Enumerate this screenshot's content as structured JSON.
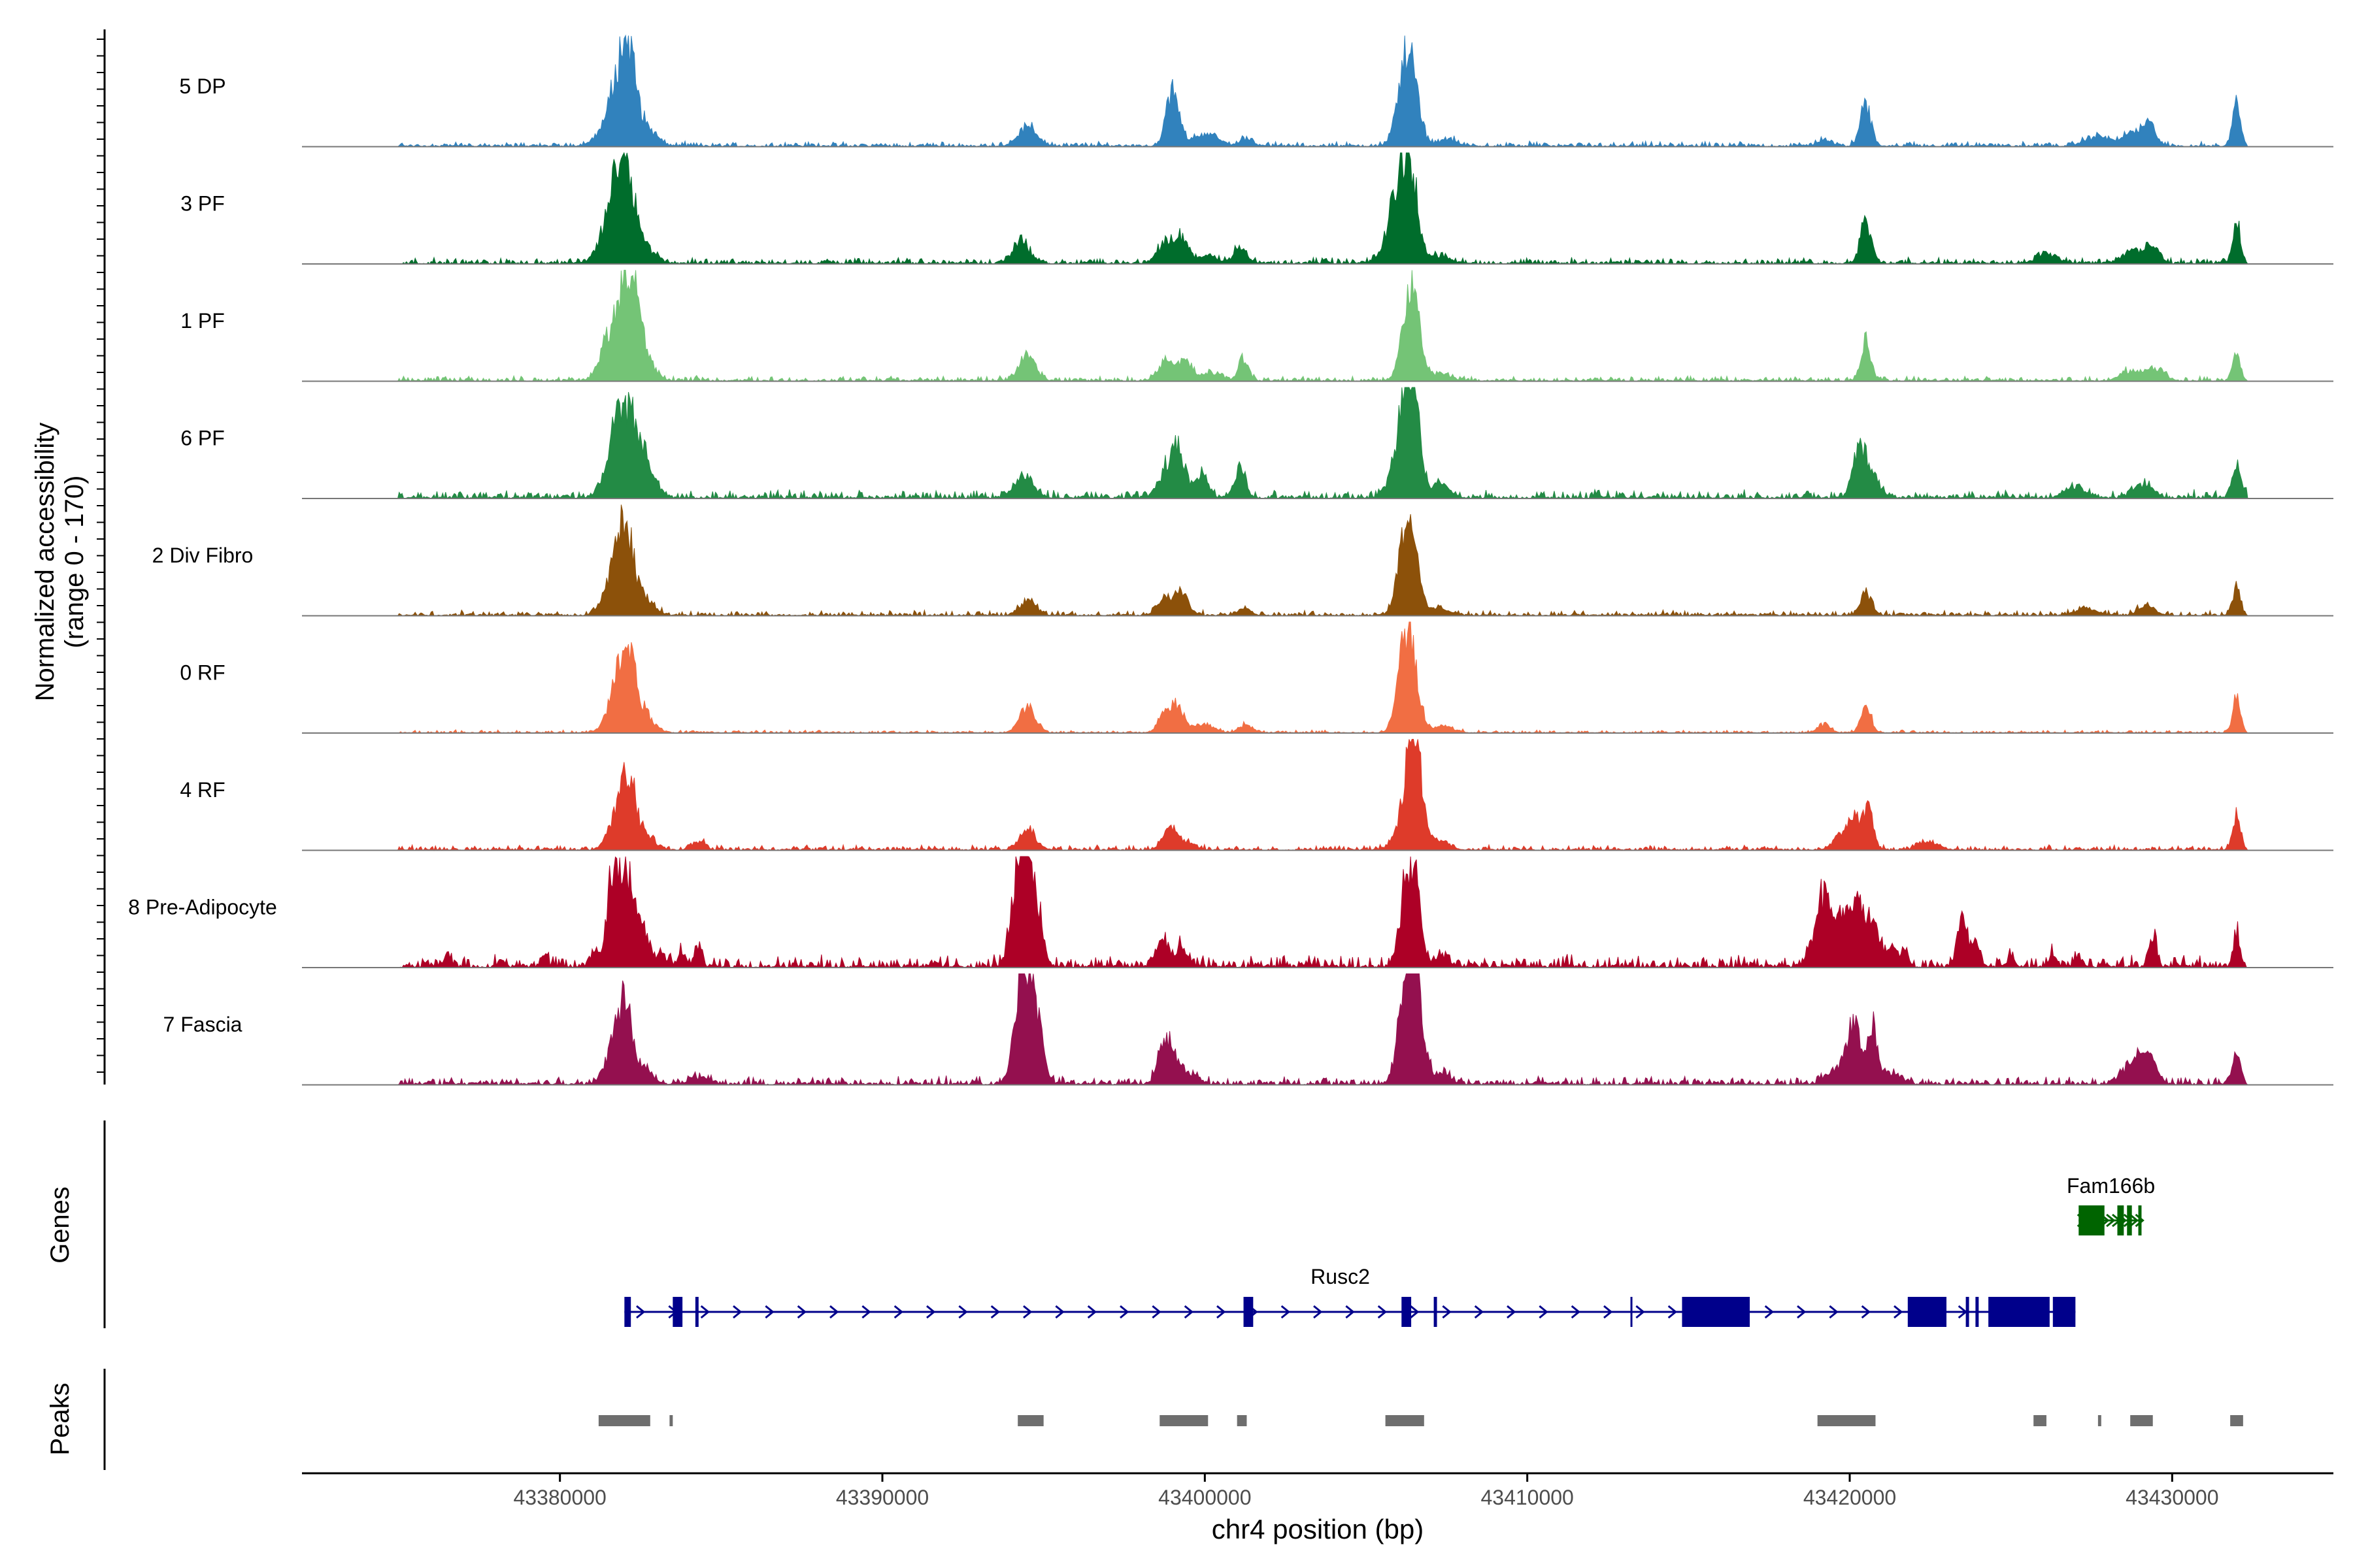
{
  "chart_data": {
    "type": "area",
    "chromosome": "chr4",
    "xlabel": "chr4 position (bp)",
    "ylabel_line1": "Normalized accessibility",
    "ylabel_line2": "(range 0 - 170)",
    "y_range": [
      0,
      170
    ],
    "xlim": [
      43372000,
      43435000
    ],
    "x_ticks": [
      43380000,
      43390000,
      43400000,
      43410000,
      43420000,
      43430000
    ],
    "x_tick_labels": [
      "43380000",
      "43390000",
      "43400000",
      "43410000",
      "43420000",
      "43430000"
    ],
    "grid": false,
    "tracks": [
      {
        "name": "5 DP",
        "color": "#3182bd",
        "peaks": [
          [
            43381400,
            18,
            350
          ],
          [
            43381700,
            50,
            250
          ],
          [
            43382100,
            145,
            250
          ],
          [
            43382700,
            25,
            300
          ],
          [
            43394500,
            28,
            300
          ],
          [
            43399000,
            80,
            200
          ],
          [
            43400000,
            18,
            400
          ],
          [
            43401300,
            12,
            200
          ],
          [
            43406300,
            150,
            270
          ],
          [
            43407500,
            10,
            300
          ],
          [
            43419200,
            10,
            200
          ],
          [
            43420500,
            62,
            170
          ],
          [
            43427700,
            14,
            400
          ],
          [
            43428800,
            20,
            300
          ],
          [
            43429300,
            30,
            200
          ],
          [
            43432000,
            68,
            120
          ]
        ],
        "noise": 0.05
      },
      {
        "name": "3 PF",
        "color": "#006d2c",
        "peaks": [
          [
            43381500,
            55,
            300
          ],
          [
            43381800,
            70,
            200
          ],
          [
            43382100,
            125,
            260
          ],
          [
            43382700,
            20,
            300
          ],
          [
            43394300,
            35,
            250
          ],
          [
            43398800,
            32,
            250
          ],
          [
            43399300,
            35,
            200
          ],
          [
            43400100,
            12,
            300
          ],
          [
            43401100,
            28,
            180
          ],
          [
            43406000,
            110,
            300
          ],
          [
            43406400,
            115,
            220
          ],
          [
            43407300,
            12,
            300
          ],
          [
            43420500,
            65,
            170
          ],
          [
            43426100,
            15,
            300
          ],
          [
            43428800,
            20,
            300
          ],
          [
            43429400,
            22,
            200
          ],
          [
            43432000,
            60,
            120
          ]
        ],
        "noise": 0.06
      },
      {
        "name": "1 PF",
        "color": "#74c476",
        "peaks": [
          [
            43381500,
            65,
            250
          ],
          [
            43381900,
            55,
            200
          ],
          [
            43382200,
            130,
            250
          ],
          [
            43382600,
            35,
            300
          ],
          [
            43394500,
            38,
            250
          ],
          [
            43398800,
            30,
            250
          ],
          [
            43399400,
            28,
            200
          ],
          [
            43400200,
            12,
            300
          ],
          [
            43401200,
            34,
            150
          ],
          [
            43406400,
            145,
            250
          ],
          [
            43407300,
            10,
            300
          ],
          [
            43420500,
            62,
            150
          ],
          [
            43428700,
            15,
            300
          ],
          [
            43429500,
            20,
            250
          ],
          [
            43432000,
            40,
            120
          ]
        ],
        "noise": 0.05
      },
      {
        "name": "6 PF",
        "color": "#238b45",
        "peaks": [
          [
            43381500,
            40,
            250
          ],
          [
            43381800,
            85,
            200
          ],
          [
            43382200,
            100,
            250
          ],
          [
            43382600,
            50,
            300
          ],
          [
            43394400,
            30,
            300
          ],
          [
            43398800,
            40,
            250
          ],
          [
            43399200,
            65,
            200
          ],
          [
            43399900,
            35,
            200
          ],
          [
            43401100,
            45,
            160
          ],
          [
            43406100,
            75,
            300
          ],
          [
            43406400,
            160,
            230
          ],
          [
            43407300,
            20,
            300
          ],
          [
            43420300,
            70,
            200
          ],
          [
            43420700,
            30,
            250
          ],
          [
            43427000,
            15,
            300
          ],
          [
            43429100,
            20,
            300
          ],
          [
            43432000,
            52,
            130
          ]
        ],
        "noise": 0.08
      },
      {
        "name": "2 Div Fibro",
        "color": "#8c510a",
        "peaks": [
          [
            43381600,
            40,
            300
          ],
          [
            43382000,
            130,
            260
          ],
          [
            43382600,
            25,
            300
          ],
          [
            43394500,
            22,
            250
          ],
          [
            43398800,
            25,
            250
          ],
          [
            43399300,
            30,
            200
          ],
          [
            43401200,
            12,
            200
          ],
          [
            43406300,
            155,
            260
          ],
          [
            43407300,
            10,
            300
          ],
          [
            43420500,
            35,
            180
          ],
          [
            43427300,
            12,
            300
          ],
          [
            43429200,
            15,
            250
          ],
          [
            43432000,
            42,
            120
          ]
        ],
        "noise": 0.05
      },
      {
        "name": "0 RF",
        "color": "#f16e43",
        "peaks": [
          [
            43381700,
            55,
            250
          ],
          [
            43382100,
            115,
            240
          ],
          [
            43382600,
            28,
            300
          ],
          [
            43394500,
            38,
            250
          ],
          [
            43398800,
            32,
            220
          ],
          [
            43399200,
            32,
            200
          ],
          [
            43400000,
            12,
            300
          ],
          [
            43401300,
            12,
            200
          ],
          [
            43406300,
            165,
            260
          ],
          [
            43407400,
            10,
            300
          ],
          [
            43419200,
            12,
            200
          ],
          [
            43420500,
            40,
            160
          ],
          [
            43432000,
            55,
            120
          ]
        ],
        "noise": 0.03
      },
      {
        "name": "4 RF",
        "color": "#de3b2a",
        "peaks": [
          [
            43381700,
            35,
            250
          ],
          [
            43382100,
            110,
            230
          ],
          [
            43382600,
            20,
            300
          ],
          [
            43384300,
            12,
            200
          ],
          [
            43394500,
            32,
            250
          ],
          [
            43398900,
            32,
            200
          ],
          [
            43399400,
            12,
            300
          ],
          [
            43406200,
            40,
            300
          ],
          [
            43406500,
            165,
            230
          ],
          [
            43407300,
            12,
            300
          ],
          [
            43419800,
            25,
            250
          ],
          [
            43420200,
            40,
            200
          ],
          [
            43420600,
            58,
            150
          ],
          [
            43422500,
            12,
            300
          ],
          [
            43432000,
            55,
            120
          ]
        ],
        "noise": 0.05
      },
      {
        "name": "8 Pre-Adipocyte",
        "color": "#ad0026",
        "peaks": [
          [
            43376500,
            18,
            100
          ],
          [
            43378200,
            10,
            100
          ],
          [
            43379500,
            15,
            100
          ],
          [
            43381100,
            25,
            120
          ],
          [
            43381600,
            130,
            150
          ],
          [
            43382000,
            150,
            180
          ],
          [
            43382400,
            70,
            200
          ],
          [
            43382800,
            20,
            200
          ],
          [
            43383200,
            15,
            120
          ],
          [
            43383800,
            20,
            120
          ],
          [
            43384300,
            30,
            100
          ],
          [
            43394300,
            170,
            180
          ],
          [
            43394700,
            130,
            200
          ],
          [
            43394000,
            40,
            150
          ],
          [
            43398700,
            40,
            200
          ],
          [
            43399300,
            25,
            150
          ],
          [
            43406200,
            80,
            200
          ],
          [
            43406500,
            125,
            200
          ],
          [
            43407300,
            15,
            200
          ],
          [
            43418800,
            25,
            150
          ],
          [
            43419200,
            100,
            200
          ],
          [
            43419700,
            75,
            200
          ],
          [
            43420200,
            95,
            200
          ],
          [
            43420700,
            70,
            200
          ],
          [
            43421300,
            25,
            150
          ],
          [
            43421700,
            20,
            120
          ],
          [
            43423500,
            70,
            150
          ],
          [
            43423900,
            30,
            150
          ],
          [
            43425000,
            15,
            120
          ],
          [
            43426300,
            18,
            100
          ],
          [
            43427100,
            15,
            100
          ],
          [
            43429400,
            45,
            120
          ],
          [
            43432000,
            55,
            100
          ]
        ],
        "noise": 0.12
      },
      {
        "name": "7 Fascia",
        "color": "#94104f",
        "peaks": [
          [
            43381600,
            40,
            250
          ],
          [
            43382000,
            115,
            230
          ],
          [
            43382600,
            20,
            300
          ],
          [
            43384300,
            10,
            300
          ],
          [
            43394300,
            135,
            220
          ],
          [
            43394700,
            125,
            230
          ],
          [
            43398800,
            70,
            220
          ],
          [
            43399400,
            20,
            300
          ],
          [
            43406200,
            120,
            230
          ],
          [
            43406500,
            160,
            230
          ],
          [
            43407300,
            15,
            300
          ],
          [
            43419500,
            20,
            250
          ],
          [
            43420100,
            100,
            200
          ],
          [
            43420700,
            85,
            150
          ],
          [
            43421300,
            15,
            300
          ],
          [
            43428700,
            25,
            300
          ],
          [
            43429200,
            50,
            250
          ],
          [
            43432000,
            50,
            120
          ]
        ],
        "noise": 0.08
      }
    ],
    "genes_label": "Genes",
    "peaks_label": "Peaks",
    "genes": [
      {
        "name": "Fam166b",
        "color": "#006400",
        "start": 43427100,
        "end": 43429100,
        "strand": "+",
        "exons": [
          [
            43427100,
            43427900
          ],
          [
            43428300,
            43428500
          ],
          [
            43428600,
            43428750
          ],
          [
            43428950,
            43429050
          ]
        ]
      },
      {
        "name": "Rusc2",
        "color": "#00008b",
        "start": 43382000,
        "end": 43427000,
        "strand": "+",
        "exons": [
          [
            43382000,
            43382200
          ],
          [
            43383500,
            43383800
          ],
          [
            43384200,
            43384300
          ],
          [
            43401200,
            43401500
          ],
          [
            43406100,
            43406400
          ],
          [
            43407100,
            43407200
          ],
          [
            43413200,
            43413250
          ],
          [
            43414800,
            43416900
          ],
          [
            43421800,
            43423000
          ],
          [
            43423600,
            43423700
          ],
          [
            43423900,
            43424000
          ],
          [
            43424300,
            43426200
          ],
          [
            43426300,
            43427000
          ]
        ]
      }
    ],
    "peak_regions": [
      [
        43381200,
        43382800
      ],
      [
        43383400,
        43383500
      ],
      [
        43394200,
        43395000
      ],
      [
        43398600,
        43400100
      ],
      [
        43401000,
        43401300
      ],
      [
        43405600,
        43406800
      ],
      [
        43419000,
        43420800
      ],
      [
        43425700,
        43426100
      ],
      [
        43427700,
        43427800
      ],
      [
        43428700,
        43429400
      ],
      [
        43431800,
        43432200
      ]
    ]
  }
}
